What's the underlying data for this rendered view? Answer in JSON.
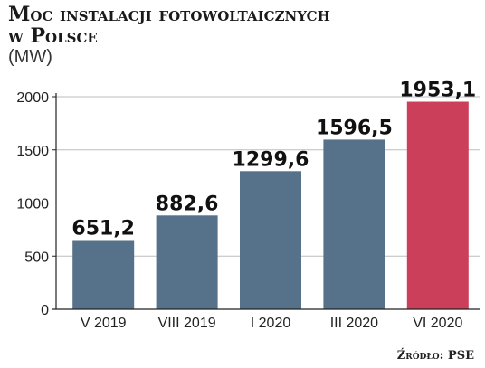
{
  "chart_data": {
    "type": "bar",
    "title_line1": "Moc instalacji fotowoltaicznych",
    "title_line2": "w Polsce",
    "unit": "(MW)",
    "categories": [
      "V 2019",
      "VIII 2019",
      "I 2020",
      "III 2020",
      "VI 2020"
    ],
    "values": [
      651.2,
      882.6,
      1299.6,
      1596.5,
      1953.1
    ],
    "value_labels": [
      "651,2",
      "882,6",
      "1299,6",
      "1596,5",
      "1953,1"
    ],
    "yticks": [
      0,
      500,
      1000,
      1500,
      2000
    ],
    "ylim": [
      0,
      2000
    ],
    "grid": true,
    "legend": "none",
    "colors": {
      "bar": "#56728a",
      "highlight": "#cc3f5a",
      "grid": "#bdbdbd",
      "axis": "#222222"
    },
    "highlight_index": 4
  },
  "source": "Źródło: PSE"
}
